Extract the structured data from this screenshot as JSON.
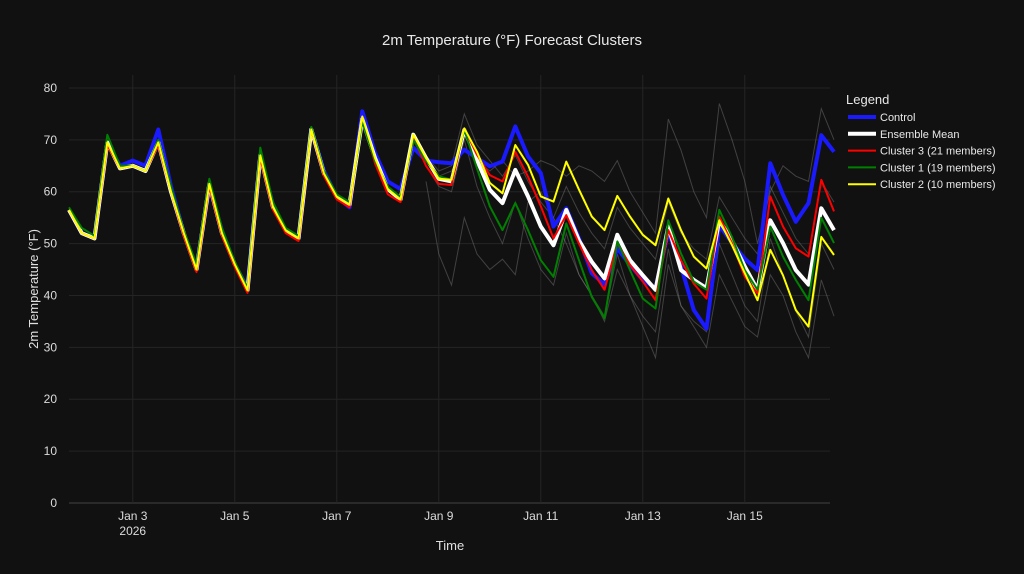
{
  "chart_data": {
    "type": "line",
    "title": "2m Temperature (°F) Forecast Clusters",
    "xlabel": "Time",
    "ylabel": "2m Temperature (°F)",
    "ylim": [
      0,
      82.5
    ],
    "yticks": [
      0,
      10,
      20,
      30,
      40,
      50,
      60,
      70,
      80
    ],
    "x_start": "2026-01-01T18:00",
    "x_step_hours": 6,
    "x_count": 61,
    "xticks": [
      {
        "label": "Jan 3",
        "sublabel": "2026",
        "date": "2026-01-03T00:00"
      },
      {
        "label": "Jan 5",
        "date": "2026-01-05T00:00"
      },
      {
        "label": "Jan 7",
        "date": "2026-01-07T00:00"
      },
      {
        "label": "Jan 9",
        "date": "2026-01-09T00:00"
      },
      {
        "label": "Jan 11",
        "date": "2026-01-11T00:00"
      },
      {
        "label": "Jan 13",
        "date": "2026-01-13T00:00"
      },
      {
        "label": "Jan 15",
        "date": "2026-01-15T00:00"
      }
    ],
    "grid": true,
    "legend": {
      "title": "Legend",
      "placement": "right"
    },
    "members": {
      "color": "#9a9a9a",
      "start_index": 28,
      "series": [
        [
          67,
          64,
          65,
          75,
          69,
          66,
          63,
          67,
          62,
          58,
          55,
          61,
          56,
          52,
          49,
          57,
          53,
          50,
          47,
          58,
          52,
          49,
          47,
          59,
          55,
          51,
          48,
          61,
          56,
          51,
          48,
          62,
          58
        ],
        [
          65,
          61,
          60,
          70,
          61,
          55,
          50,
          58,
          51,
          45,
          42,
          52,
          44,
          40,
          36,
          48,
          40,
          36,
          33,
          49,
          38,
          35,
          33,
          50,
          44,
          38,
          35,
          51,
          44,
          37,
          32,
          50,
          45
        ],
        [
          66,
          63,
          64,
          68,
          66,
          64,
          66,
          63,
          64,
          66,
          65,
          63,
          65,
          64,
          62,
          66,
          60,
          56,
          52,
          74,
          68,
          60,
          55,
          77,
          70,
          62,
          50,
          60,
          65,
          63,
          62,
          76,
          70
        ],
        [
          62,
          48,
          42,
          55,
          48,
          45,
          47,
          44,
          58,
          60,
          55,
          50,
          44,
          40,
          35,
          45,
          40,
          34,
          28,
          46,
          38,
          34,
          30,
          44,
          39,
          34,
          32,
          44,
          40,
          33,
          28,
          43,
          36
        ]
      ]
    },
    "series": [
      {
        "name": "Control",
        "color": "#1a1aff",
        "width": 4,
        "values": [
          56.5,
          52,
          51,
          69.5,
          65,
          66,
          65,
          72,
          61,
          52,
          45.5,
          61,
          52.5,
          46,
          41.5,
          67,
          57.5,
          52.5,
          51,
          72,
          64,
          59,
          57,
          75.5,
          67.5,
          62,
          60.5,
          68.5,
          66,
          65.7,
          65.5,
          68.1,
          66.5,
          64.9,
          65.8,
          72.6,
          66.8,
          63.6,
          53.3,
          56.8,
          51,
          44.3,
          42.1,
          49.1,
          45.9,
          43,
          41.4,
          52.3,
          45.6,
          37.2,
          33.6,
          53.6,
          50.1,
          47.1,
          44.9,
          65.5,
          59.4,
          54.2,
          57.8,
          70.9,
          67.7
        ]
      },
      {
        "name": "Ensemble Mean",
        "color": "#ffffff",
        "width": 4,
        "values": [
          56.5,
          52,
          51,
          69.5,
          64.5,
          65,
          64,
          69.5,
          60,
          52,
          45,
          61.5,
          52,
          46,
          41,
          67,
          57,
          52.5,
          51,
          72,
          63.5,
          59,
          57.5,
          74,
          66.5,
          60.5,
          58.5,
          71,
          66.5,
          62.5,
          62,
          71.9,
          66.1,
          60.4,
          57.8,
          64.2,
          59.1,
          53.3,
          49.7,
          56.5,
          50.6,
          46.5,
          43.3,
          51.7,
          46.8,
          43.9,
          41.1,
          53.3,
          44.9,
          43,
          41.4,
          54.5,
          50.6,
          45.6,
          41.1,
          54.5,
          50.1,
          44.9,
          42.1,
          56.8,
          52.6
        ]
      },
      {
        "name": "Cluster 3 (21 members)",
        "color": "#ff0000",
        "width": 2,
        "values": [
          56.5,
          52,
          51,
          69,
          64.5,
          65,
          64,
          69,
          60,
          51.5,
          44.5,
          61,
          51.5,
          45.5,
          40.5,
          66.5,
          56.5,
          52,
          50.5,
          72,
          63,
          58.5,
          57,
          74.5,
          65.5,
          59.5,
          58,
          70.5,
          65,
          61.5,
          61.3,
          72.2,
          67.1,
          63.2,
          62,
          67.7,
          62.9,
          57.2,
          51,
          55.5,
          50,
          44.9,
          41.1,
          50.1,
          45.9,
          42.7,
          39.1,
          52.6,
          46.8,
          42.3,
          39.4,
          55.2,
          50.1,
          43.6,
          40.4,
          59.1,
          53.3,
          49.1,
          47.5,
          62.3,
          56.2
        ]
      },
      {
        "name": "Cluster 1 (19 members)",
        "color": "#008000",
        "width": 2,
        "values": [
          57,
          53,
          51.5,
          71,
          65,
          65,
          64,
          70,
          61,
          52.5,
          46,
          62.5,
          53,
          46.5,
          41.5,
          68.5,
          58,
          53,
          51.5,
          72.5,
          64,
          59.5,
          58,
          73.5,
          66,
          61,
          59,
          70,
          66,
          63,
          62.3,
          71.9,
          64.5,
          57.2,
          52.6,
          57.8,
          52.6,
          46.8,
          43.6,
          53.9,
          46.8,
          39.7,
          35.6,
          50.4,
          44.9,
          39.4,
          37.5,
          54.5,
          48.1,
          42.7,
          41.1,
          56.5,
          51.3,
          44.9,
          41.1,
          53.3,
          47.5,
          43,
          39.1,
          55,
          50.1
        ]
      },
      {
        "name": "Cluster 2 (10 members)",
        "color": "#ffff00",
        "width": 2,
        "values": [
          56.5,
          52,
          51,
          69.5,
          64.5,
          65,
          64,
          69.5,
          60,
          52,
          45,
          61.5,
          52,
          46,
          41,
          67,
          57,
          52.5,
          51,
          72,
          63.5,
          59,
          57.5,
          74.5,
          66.5,
          60.5,
          58.5,
          71,
          66.5,
          62.5,
          62.3,
          72.2,
          67.7,
          61.7,
          59.7,
          69,
          65.2,
          59.1,
          58.1,
          65.8,
          60.4,
          55.2,
          52.6,
          59.2,
          55.2,
          51.7,
          49.7,
          58.7,
          52.6,
          47.5,
          45.2,
          54.5,
          49.7,
          44.3,
          39.1,
          48.8,
          43.9,
          37.2,
          34,
          51.3,
          47.8
        ]
      }
    ]
  }
}
